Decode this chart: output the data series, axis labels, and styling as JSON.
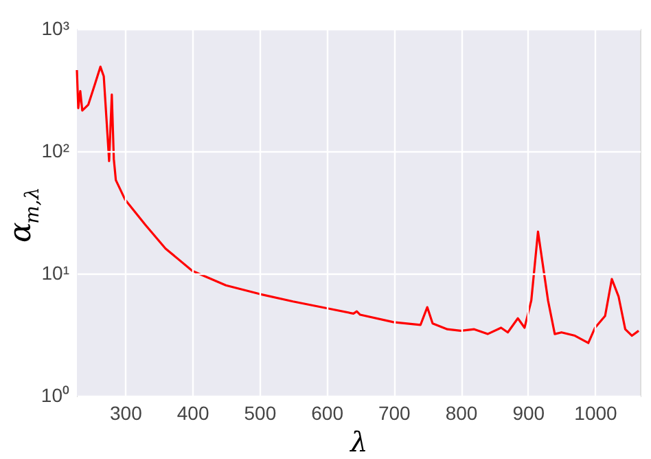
{
  "chart_data": {
    "type": "line",
    "xlabel": "λ",
    "ylabel": "α$_{m,λ}$",
    "log": "y",
    "grid": true,
    "legend": false,
    "marker": "none",
    "line_style": "solid",
    "xlim": [
      228,
      1067
    ],
    "ylim": [
      1,
      1000
    ],
    "xticks": [
      300,
      400,
      500,
      600,
      700,
      800,
      900,
      1000
    ],
    "yticks": [
      {
        "value": 1,
        "label": "10⁰"
      },
      {
        "value": 10,
        "label": "10¹"
      },
      {
        "value": 100,
        "label": "10²"
      },
      {
        "value": 1000,
        "label": "10³"
      }
    ],
    "x": [
      228,
      230,
      233,
      236,
      245,
      255,
      263,
      268,
      272,
      276,
      280,
      283,
      286,
      300,
      330,
      360,
      400,
      450,
      500,
      550,
      600,
      640,
      645,
      650,
      700,
      740,
      750,
      758,
      780,
      800,
      820,
      840,
      860,
      870,
      885,
      895,
      905,
      915,
      922,
      930,
      940,
      950,
      970,
      990,
      1000,
      1015,
      1025,
      1035,
      1045,
      1055,
      1065
    ],
    "series": [
      {
        "color": "#ff0000",
        "values": [
          460,
          225,
          310,
          215,
          240,
          355,
          490,
          410,
          185,
          83,
          290,
          86,
          58,
          40,
          25,
          16,
          10.5,
          8,
          6.8,
          5.9,
          5.2,
          4.7,
          4.9,
          4.6,
          4.0,
          3.8,
          5.3,
          3.9,
          3.5,
          3.4,
          3.5,
          3.2,
          3.6,
          3.3,
          4.3,
          3.6,
          6,
          22,
          12,
          6,
          3.2,
          3.3,
          3.1,
          2.7,
          3.6,
          4.5,
          9,
          6.5,
          3.5,
          3.1,
          3.4
        ]
      }
    ]
  }
}
